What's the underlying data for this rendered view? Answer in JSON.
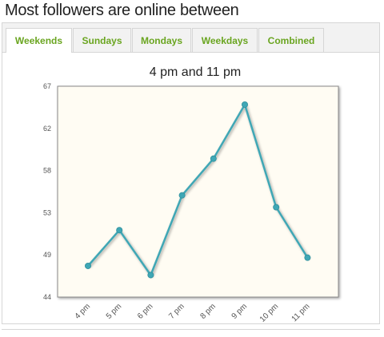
{
  "page": {
    "heading": "Most followers are online between"
  },
  "tabs": [
    {
      "label": "Weekends",
      "active": true
    },
    {
      "label": "Sundays",
      "active": false
    },
    {
      "label": "Mondays",
      "active": false
    },
    {
      "label": "Weekdays",
      "active": false
    },
    {
      "label": "Combined",
      "active": false
    }
  ],
  "colors": {
    "line": "#3fa7b5",
    "plot_bg": "#fffcf3",
    "tab_text": "#6aa520"
  },
  "chart_data": {
    "type": "line",
    "title": "4 pm and 11 pm",
    "xlabel": "",
    "ylabel": "",
    "categories": [
      "4 pm",
      "5 pm",
      "6 pm",
      "7 pm",
      "8 pm",
      "9 pm",
      "10 pm",
      "11 pm"
    ],
    "y_ticks": [
      "44",
      "49",
      "53",
      "58",
      "62",
      "67"
    ],
    "ylim": [
      44,
      67
    ],
    "grid": false,
    "values": [
      47.4,
      51.3,
      46.4,
      55.1,
      59.1,
      65.0,
      53.8,
      48.3
    ]
  }
}
